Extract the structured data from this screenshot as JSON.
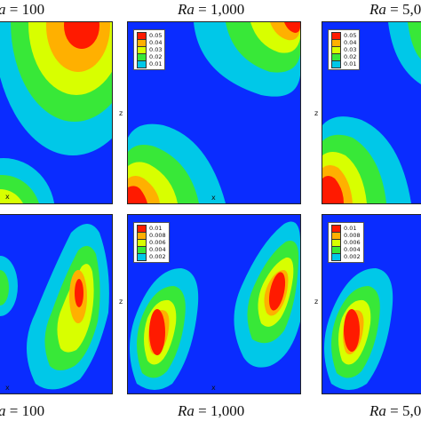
{
  "captions": {
    "top": [
      {
        "prefix": "a",
        "eq": " = 100"
      },
      {
        "prefix": "Ra",
        "eq": " = 1,000"
      },
      {
        "prefix": "Ra",
        "eq": " = 5,0"
      }
    ],
    "bottom": [
      {
        "prefix": "a",
        "eq": " = 100"
      },
      {
        "prefix": "Ra",
        "eq": " = 1,000"
      },
      {
        "prefix": "Ra",
        "eq": " = 5,0"
      }
    ]
  },
  "axes": {
    "x": "x",
    "z": "z"
  },
  "legend_top": [
    "0.05",
    "0.04",
    "0.03",
    "0.02",
    "0.01"
  ],
  "legend_bottom": [
    "0.01",
    "0.008",
    "0.006",
    "0.004",
    "0.002"
  ],
  "colors": {
    "background": "#0a2cff",
    "levels": [
      "#ff1a00",
      "#ffb000",
      "#d8ff00",
      "#38e838",
      "#00c8e8"
    ]
  }
}
